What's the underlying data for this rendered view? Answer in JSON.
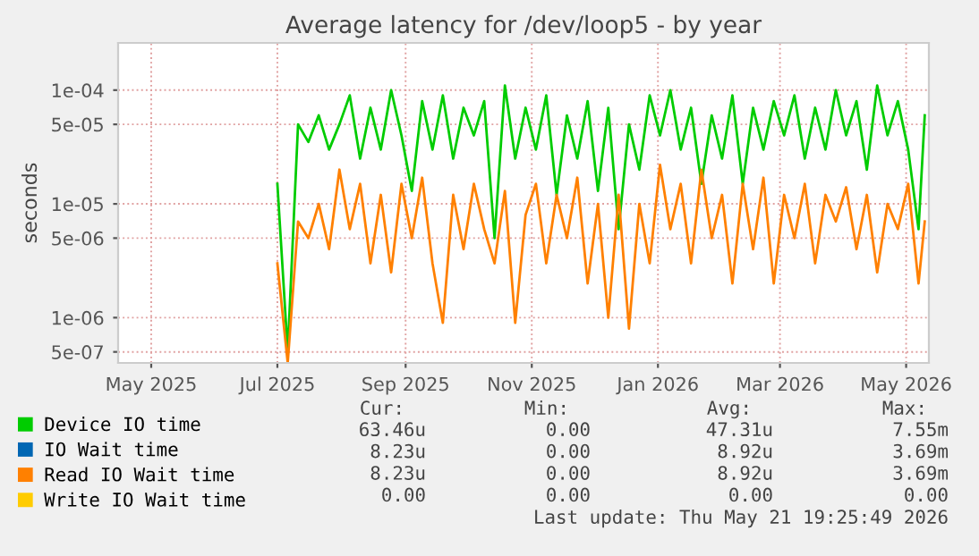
{
  "chart_data": {
    "type": "line",
    "title": "Average latency for /dev/loop5 - by year",
    "ylabel": "seconds",
    "log": "y",
    "grid": true,
    "legend": "bottom",
    "marker": "none",
    "line_style": "solid",
    "xlim": [
      "2025-04-15",
      "2026-05-12"
    ],
    "xticks": [
      {
        "value": "2025-05-01",
        "label": "May 2025"
      },
      {
        "value": "2025-07-01",
        "label": "Jul 2025"
      },
      {
        "value": "2025-09-01",
        "label": "Sep 2025"
      },
      {
        "value": "2025-11-01",
        "label": "Nov 2025"
      },
      {
        "value": "2026-01-01",
        "label": "Jan 2026"
      },
      {
        "value": "2026-03-01",
        "label": "Mar 2026"
      },
      {
        "value": "2026-05-01",
        "label": "May 2026"
      }
    ],
    "ylim": [
      4e-07,
      0.00026
    ],
    "yticks": [
      {
        "value": 0.0001,
        "label": "1e-04"
      },
      {
        "value": 5e-05,
        "label": "5e-05"
      },
      {
        "value": 1e-05,
        "label": "1e-05"
      },
      {
        "value": 5e-06,
        "label": "5e-06"
      },
      {
        "value": 1e-06,
        "label": "1e-06"
      },
      {
        "value": 5e-07,
        "label": "5e-07"
      }
    ],
    "x": [
      "2025-07-01",
      "2025-07-06",
      "2025-07-11",
      "2025-07-16",
      "2025-07-21",
      "2025-07-26",
      "2025-07-31",
      "2025-08-05",
      "2025-08-10",
      "2025-08-15",
      "2025-08-20",
      "2025-08-25",
      "2025-08-30",
      "2025-09-04",
      "2025-09-09",
      "2025-09-14",
      "2025-09-19",
      "2025-09-24",
      "2025-09-29",
      "2025-10-04",
      "2025-10-09",
      "2025-10-14",
      "2025-10-19",
      "2025-10-24",
      "2025-10-29",
      "2025-11-03",
      "2025-11-08",
      "2025-11-13",
      "2025-11-18",
      "2025-11-23",
      "2025-11-28",
      "2025-12-03",
      "2025-12-08",
      "2025-12-13",
      "2025-12-18",
      "2025-12-23",
      "2025-12-28",
      "2026-01-02",
      "2026-01-07",
      "2026-01-12",
      "2026-01-17",
      "2026-01-22",
      "2026-01-27",
      "2026-02-01",
      "2026-02-06",
      "2026-02-11",
      "2026-02-16",
      "2026-02-21",
      "2026-02-26",
      "2026-03-03",
      "2026-03-08",
      "2026-03-13",
      "2026-03-18",
      "2026-03-23",
      "2026-03-28",
      "2026-04-02",
      "2026-04-07",
      "2026-04-12",
      "2026-04-17",
      "2026-04-22",
      "2026-04-27",
      "2026-05-02",
      "2026-05-07",
      "2026-05-10"
    ],
    "series": [
      {
        "name": "Device IO time",
        "color": "#00cc00",
        "values": [
          1.5e-05,
          5e-07,
          5e-05,
          3.5e-05,
          6e-05,
          3e-05,
          5e-05,
          9e-05,
          2.5e-05,
          7e-05,
          3e-05,
          0.0001,
          4e-05,
          1.3e-05,
          8e-05,
          3e-05,
          9e-05,
          2.5e-05,
          7e-05,
          4e-05,
          8e-05,
          5e-06,
          0.00011,
          2.5e-05,
          7e-05,
          3e-05,
          9e-05,
          1.2e-05,
          6e-05,
          2.5e-05,
          8e-05,
          1.3e-05,
          7e-05,
          6e-06,
          5e-05,
          2e-05,
          9e-05,
          4e-05,
          0.0001,
          3e-05,
          7e-05,
          1.5e-05,
          6e-05,
          2.5e-05,
          9e-05,
          1.5e-05,
          7e-05,
          3e-05,
          8e-05,
          4e-05,
          9e-05,
          2.5e-05,
          7e-05,
          3e-05,
          0.0001,
          4e-05,
          8e-05,
          2e-05,
          0.00011,
          4e-05,
          8e-05,
          3e-05,
          6e-06,
          6e-05
        ]
      },
      {
        "name": "IO Wait time",
        "color": "#0066b3",
        "values": [
          null,
          null,
          null,
          null,
          null,
          null,
          null,
          null,
          null,
          null,
          null,
          null,
          null,
          null,
          null,
          null,
          null,
          null,
          null,
          null,
          null,
          null,
          null,
          null,
          null,
          null,
          null,
          null,
          null,
          null,
          null,
          null,
          null,
          null,
          null,
          null,
          null,
          null,
          null,
          null,
          null,
          null,
          null,
          null,
          null,
          null,
          null,
          null,
          null,
          null,
          null,
          null,
          null,
          null,
          null,
          null,
          null,
          null,
          null,
          null,
          null,
          null,
          null,
          null
        ]
      },
      {
        "name": "Read IO Wait time",
        "color": "#ff8000",
        "values": [
          3e-06,
          4e-07,
          7e-06,
          5e-06,
          1e-05,
          4e-06,
          2e-05,
          6e-06,
          1.5e-05,
          3e-06,
          1.2e-05,
          2.5e-06,
          1.5e-05,
          5e-06,
          1.7e-05,
          3e-06,
          9e-07,
          1.2e-05,
          4e-06,
          1.5e-05,
          6e-06,
          3e-06,
          1.3e-05,
          9e-07,
          8e-06,
          1.5e-05,
          3e-06,
          1.2e-05,
          5e-06,
          1.7e-05,
          2e-06,
          1e-05,
          1e-06,
          1.2e-05,
          8e-07,
          1e-05,
          3e-06,
          2.2e-05,
          6e-06,
          1.5e-05,
          3e-06,
          2e-05,
          5e-06,
          1.2e-05,
          2e-06,
          1.5e-05,
          4e-06,
          1.7e-05,
          2e-06,
          1.2e-05,
          5e-06,
          1.5e-05,
          3e-06,
          1.2e-05,
          7e-06,
          1.4e-05,
          4e-06,
          1.2e-05,
          2.5e-06,
          1e-05,
          6e-06,
          1.5e-05,
          2e-06,
          7e-06
        ]
      },
      {
        "name": "Write IO Wait time",
        "color": "#ffcc00",
        "values": [
          null,
          null,
          null,
          null,
          null,
          null,
          null,
          null,
          null,
          null,
          null,
          null,
          null,
          null,
          null,
          null,
          null,
          null,
          null,
          null,
          null,
          null,
          null,
          null,
          null,
          null,
          null,
          null,
          null,
          null,
          null,
          null,
          null,
          null,
          null,
          null,
          null,
          null,
          null,
          null,
          null,
          null,
          null,
          null,
          null,
          null,
          null,
          null,
          null,
          null,
          null,
          null,
          null,
          null,
          null,
          null,
          null,
          null,
          null,
          null,
          null,
          null,
          null,
          null
        ]
      }
    ],
    "annotations": [
      "Cur:",
      "Min:",
      "Avg:",
      "Max:",
      "63.46u",
      "0.00",
      "47.31u",
      "7.55m",
      "8.23u",
      "0.00",
      "8.92u",
      "3.69m",
      "8.23u",
      "0.00",
      "8.92u",
      "3.69m",
      "0.00",
      "0.00",
      "0.00",
      "0.00",
      "Last update: Thu May 21 19:25:49 2026"
    ]
  }
}
